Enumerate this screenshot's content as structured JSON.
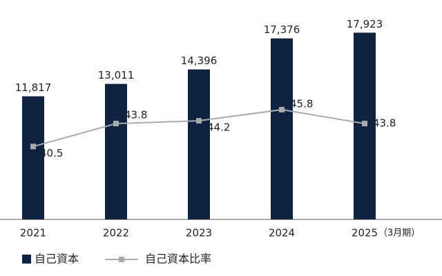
{
  "chart_data": {
    "type": "bar_line",
    "categories": [
      "2021",
      "2022",
      "2023",
      "2024",
      "2025"
    ],
    "x_label_note": "（3月期）",
    "series": [
      {
        "name": "自己資本",
        "type": "bar",
        "color": "#0e2342",
        "values": [
          11817,
          13011,
          14396,
          17376,
          17923
        ],
        "value_labels": [
          "11,817",
          "13,011",
          "14,396",
          "17,376",
          "17,923"
        ]
      },
      {
        "name": "自己資本比率",
        "type": "line",
        "axis": "y2",
        "color": "#aaaaaa",
        "values": [
          40.5,
          43.8,
          44.2,
          45.8,
          43.8
        ]
      }
    ],
    "ylim": [
      0,
      20000
    ],
    "y2lim": [
      30,
      60
    ],
    "legend": "bottom-left"
  }
}
